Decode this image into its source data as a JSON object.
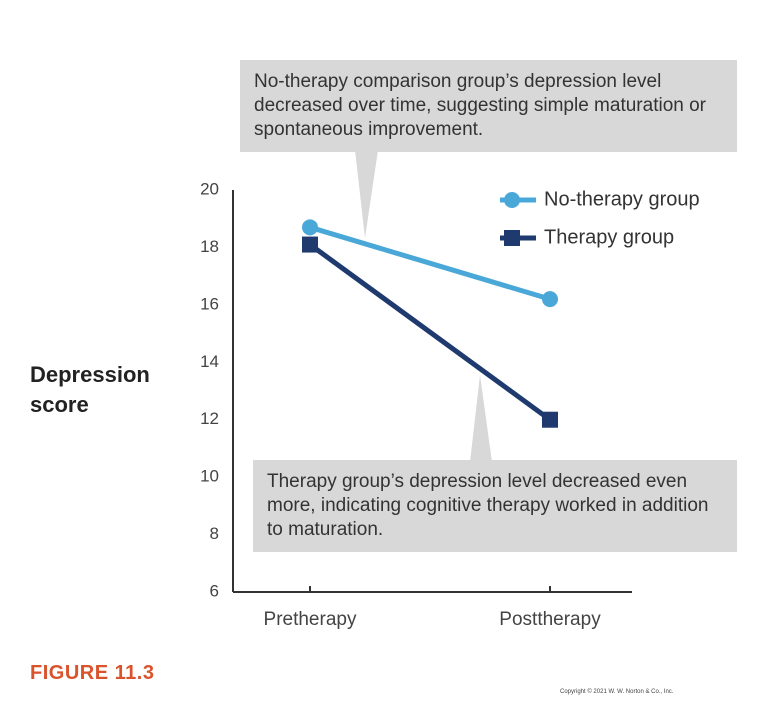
{
  "chart_data": {
    "type": "line",
    "ylabel": "Depression score",
    "categories": [
      "Pretherapy",
      "Posttherapy"
    ],
    "series": [
      {
        "name": "No-therapy group",
        "color": "#4aa8d8",
        "marker": "circle",
        "values": [
          18.7,
          16.2
        ]
      },
      {
        "name": "Therapy group",
        "color": "#1f3a6e",
        "marker": "square",
        "values": [
          18.1,
          12.0
        ]
      }
    ],
    "ylim": [
      6,
      20
    ],
    "yticks": [
      6,
      8,
      10,
      12,
      14,
      16,
      18,
      20
    ],
    "legend": "upper right",
    "annotations": [
      "No-therapy comparison group’s depression level decreased over time, suggesting simple maturation or spontaneous improvement.",
      "Therapy group’s depression level decreased even more, indicating cognitive therapy worked in addition to maturation."
    ],
    "figure_label": "FIGURE 11.3",
    "copyright": "Copyright © 2021 W. W. Norton & Co., Inc."
  }
}
